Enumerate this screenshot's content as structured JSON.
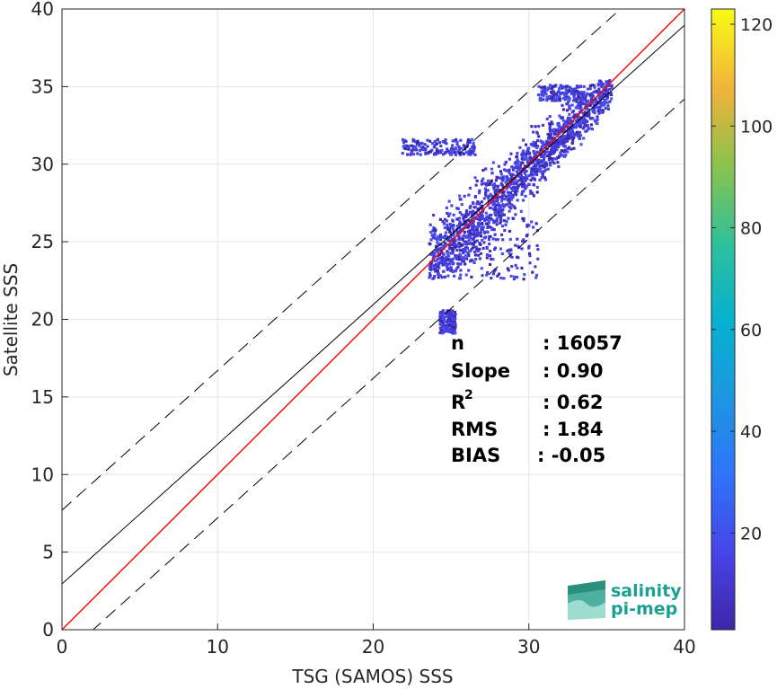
{
  "chart_data": {
    "type": "heatmap",
    "xlabel": "TSG (SAMOS) SSS",
    "ylabel": "Satellite SSS",
    "xlim": [
      0,
      40
    ],
    "ylim": [
      0,
      40
    ],
    "xticks": [
      0,
      10,
      20,
      30,
      40
    ],
    "yticks": [
      0,
      5,
      10,
      15,
      20,
      25,
      30,
      35,
      40
    ],
    "grid": true,
    "lines": [
      {
        "kind": "identity",
        "color": "#ff0000",
        "style": "solid",
        "intercept": 0,
        "slope": 1
      },
      {
        "kind": "regression",
        "color": "#000000",
        "style": "solid",
        "intercept": 2.95,
        "slope": 0.9
      },
      {
        "kind": "upper-bound",
        "color": "#000000",
        "style": "dashed",
        "intercept": 7.7,
        "slope": 0.9
      },
      {
        "kind": "lower-bound",
        "color": "#000000",
        "style": "dashed",
        "intercept": -1.8,
        "slope": 0.9
      }
    ],
    "density_clusters": [
      {
        "x": [
          23.5,
          35.3
        ],
        "y": [
          22.5,
          35.3
        ],
        "note": "main band along identity"
      },
      {
        "x": [
          24.8,
          30.5
        ],
        "y": [
          22.5,
          26.5
        ]
      },
      {
        "x": [
          21.8,
          26.5
        ],
        "y": [
          30.5,
          31.5
        ]
      },
      {
        "x": [
          24.2,
          25.2
        ],
        "y": [
          19.0,
          20.5
        ]
      },
      {
        "x": [
          30.5,
          33.5
        ],
        "y": [
          34.0,
          35.0
        ]
      }
    ],
    "colorbar": {
      "ticks": [
        20,
        40,
        60,
        80,
        100,
        120
      ],
      "range": [
        1,
        123
      ],
      "colormap": "parula"
    },
    "stats": [
      {
        "label": "n",
        "value": ": 16057"
      },
      {
        "label": "Slope",
        "value": ": 0.90"
      },
      {
        "label": "R",
        "sup": "2",
        "value": ": 0.62"
      },
      {
        "label": "RMS",
        "value": ": 1.84"
      },
      {
        "label": "BIAS",
        "value": ": -0.05"
      }
    ]
  },
  "logo": {
    "line1": "salinity",
    "line2": "pi-mep",
    "color": "#1aa192"
  }
}
